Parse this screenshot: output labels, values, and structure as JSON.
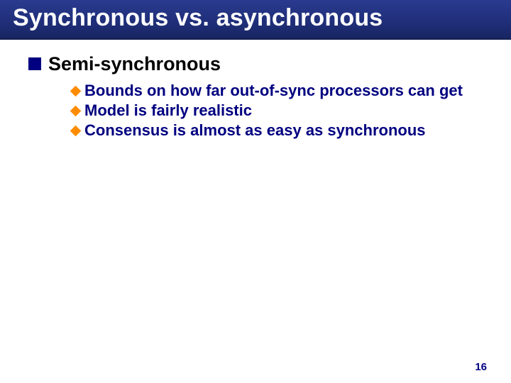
{
  "slide": {
    "title": "Synchronous vs. asynchronous",
    "page_number": "16",
    "colors": {
      "title_bg_top": "#2a3a8f",
      "title_bg_bottom": "#182460",
      "title_text": "#ffffff",
      "square_bullet": "#000080",
      "diamond_bullet": "#ff8c00",
      "lvl1_text": "#000000",
      "lvl2_text": "#000080",
      "page_number": "#000080",
      "background": "#ffffff"
    },
    "typography": {
      "title_fontsize": 34,
      "lvl1_fontsize": 27,
      "lvl2_fontsize": 22,
      "page_number_fontsize": 15,
      "font_family": "Arial",
      "weight": "bold"
    },
    "bullets_lvl1": [
      {
        "label": "Semi-synchronous"
      }
    ],
    "bullets_lvl2": [
      {
        "label": "Bounds on how far out-of-sync processors can get"
      },
      {
        "label": "Model is fairly realistic"
      },
      {
        "label": "Consensus is almost as easy as synchronous"
      }
    ]
  }
}
